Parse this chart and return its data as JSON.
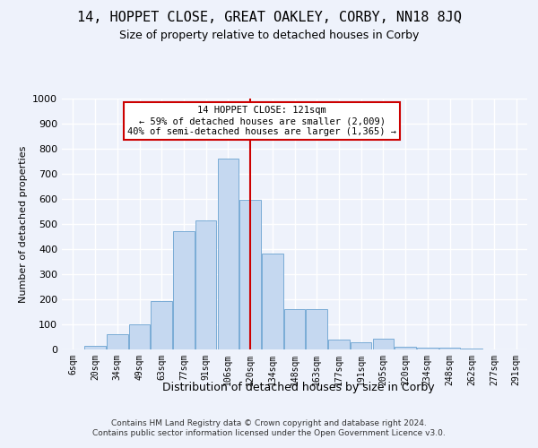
{
  "title": "14, HOPPET CLOSE, GREAT OAKLEY, CORBY, NN18 8JQ",
  "subtitle": "Size of property relative to detached houses in Corby",
  "xlabel": "Distribution of detached houses by size in Corby",
  "ylabel": "Number of detached properties",
  "categories": [
    "6sqm",
    "20sqm",
    "34sqm",
    "49sqm",
    "63sqm",
    "77sqm",
    "91sqm",
    "106sqm",
    "120sqm",
    "134sqm",
    "148sqm",
    "163sqm",
    "177sqm",
    "191sqm",
    "205sqm",
    "220sqm",
    "234sqm",
    "248sqm",
    "262sqm",
    "277sqm",
    "291sqm"
  ],
  "values": [
    0,
    13,
    62,
    100,
    193,
    470,
    515,
    760,
    595,
    383,
    160,
    160,
    40,
    27,
    43,
    10,
    7,
    7,
    3,
    0,
    0
  ],
  "bar_color": "#c5d8f0",
  "bar_edgecolor": "#7aacd6",
  "vline_x": 8,
  "annotation_line1": "14 HOPPET CLOSE: 121sqm",
  "annotation_line2": "← 59% of detached houses are smaller (2,009)",
  "annotation_line3": "40% of semi-detached houses are larger (1,365) →",
  "annotation_box_facecolor": "#ffffff",
  "annotation_box_edgecolor": "#cc0000",
  "footer1": "Contains HM Land Registry data © Crown copyright and database right 2024.",
  "footer2": "Contains public sector information licensed under the Open Government Licence v3.0.",
  "ylim": [
    0,
    1000
  ],
  "background_color": "#eef2fb",
  "grid_color": "#ffffff",
  "title_fontsize": 11,
  "subtitle_fontsize": 9
}
